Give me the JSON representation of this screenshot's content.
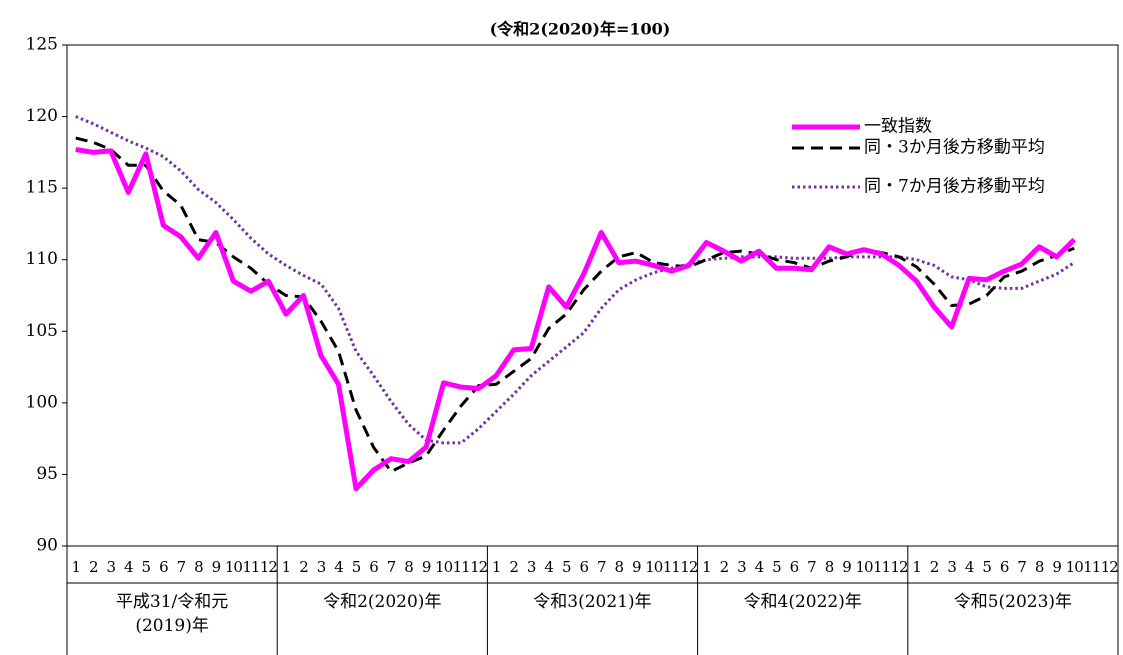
{
  "chart_data": {
    "type": "line",
    "subtitle": "(令和2(2020)年=100)",
    "categories": [
      "1",
      "2",
      "3",
      "4",
      "5",
      "6",
      "7",
      "8",
      "9",
      "10",
      "11",
      "12",
      "1",
      "2",
      "3",
      "4",
      "5",
      "6",
      "7",
      "8",
      "9",
      "10",
      "11",
      "12",
      "1",
      "2",
      "3",
      "4",
      "5",
      "6",
      "7",
      "8",
      "9",
      "10",
      "11",
      "12",
      "1",
      "2",
      "3",
      "4",
      "5",
      "6",
      "7",
      "8",
      "9",
      "10",
      "11",
      "12",
      "1",
      "2",
      "3",
      "4",
      "5",
      "6",
      "7",
      "8",
      "9",
      "10",
      "11",
      "12"
    ],
    "groups": [
      "平成31/令和元\n(2019)年",
      "令和2(2020)年",
      "令和3(2021)年",
      "令和4(2022)年",
      "令和5(2023)年"
    ],
    "series": [
      {
        "name": "一致指数",
        "color": "#ff00ff",
        "style": "solid",
        "values": [
          117.7,
          117.5,
          117.6,
          114.7,
          117.4,
          112.4,
          111.6,
          110.1,
          111.9,
          108.5,
          107.8,
          108.5,
          106.2,
          107.5,
          103.3,
          101.3,
          94.0,
          95.3,
          96.1,
          95.9,
          96.9,
          101.4,
          101.1,
          101.0,
          101.9,
          103.7,
          103.8,
          108.1,
          106.7,
          109.0,
          111.9,
          109.8,
          109.9,
          109.6,
          109.2,
          109.6,
          111.2,
          110.6,
          109.9,
          110.6,
          109.4,
          109.4,
          109.3,
          110.9,
          110.4,
          110.7,
          110.4,
          109.6,
          108.5,
          106.7,
          105.3,
          108.7,
          108.6,
          109.2,
          109.7,
          110.9,
          110.2,
          111.4,
          null,
          null
        ]
      },
      {
        "name": "同・3か月後方移動平均",
        "color": "#000000",
        "style": "dashed",
        "values": [
          118.5,
          118.2,
          117.7,
          116.6,
          116.6,
          114.8,
          113.8,
          111.4,
          111.2,
          110.2,
          109.4,
          108.3,
          107.5,
          107.4,
          105.7,
          103.6,
          99.5,
          96.9,
          95.2,
          95.8,
          96.3,
          98.1,
          99.8,
          101.2,
          101.3,
          102.2,
          103.1,
          105.2,
          106.2,
          107.9,
          109.2,
          110.2,
          110.5,
          109.8,
          109.6,
          109.5,
          110.0,
          110.5,
          110.6,
          110.4,
          110.0,
          109.8,
          109.4,
          109.9,
          110.2,
          110.7,
          110.5,
          110.2,
          109.5,
          108.3,
          106.8,
          106.9,
          107.5,
          108.8,
          109.2,
          109.9,
          110.3,
          110.8,
          null,
          null
        ]
      },
      {
        "name": "同・7か月後方移動平均",
        "color": "#7030a0",
        "style": "dotted",
        "values": [
          120.0,
          119.5,
          118.9,
          118.3,
          117.8,
          117.2,
          116.2,
          114.9,
          114.0,
          112.8,
          111.5,
          110.4,
          109.6,
          108.9,
          108.3,
          106.6,
          103.6,
          101.9,
          100.1,
          98.5,
          97.4,
          97.2,
          97.2,
          98.2,
          99.4,
          100.6,
          101.9,
          102.9,
          103.9,
          104.9,
          106.6,
          107.9,
          108.6,
          109.1,
          109.4,
          109.7,
          110.0,
          110.1,
          110.2,
          110.2,
          110.2,
          110.1,
          110.1,
          110.1,
          110.2,
          110.2,
          110.2,
          110.2,
          110.0,
          109.6,
          108.8,
          108.6,
          108.1,
          108.0,
          108.0,
          108.5,
          109.0,
          109.8,
          null,
          null
        ]
      }
    ],
    "ylim": [
      90,
      125
    ],
    "yticks": [
      90,
      95,
      100,
      105,
      110,
      115,
      120,
      125
    ],
    "grid": false,
    "legend": "upper right"
  }
}
